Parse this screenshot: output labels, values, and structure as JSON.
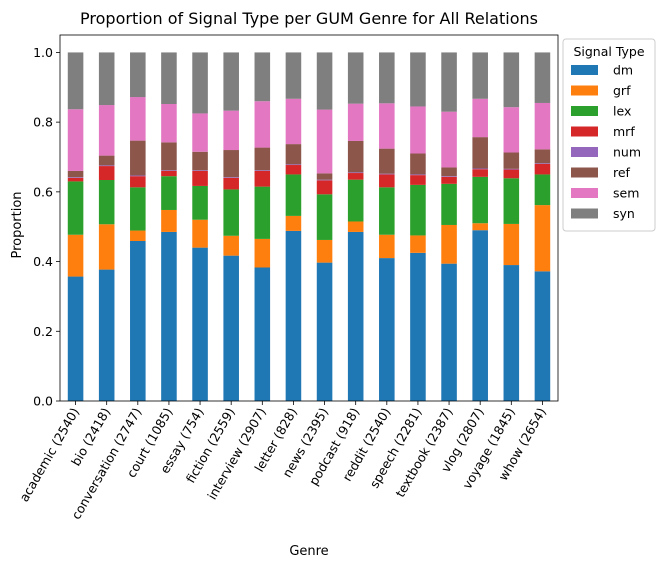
{
  "chart_data": {
    "type": "bar",
    "stacked": true,
    "title": "Proportion of Signal Type per GUM Genre for All Relations",
    "xlabel": "Genre",
    "ylabel": "Proportion",
    "ylim": [
      0,
      1.05
    ],
    "yticks": [
      "0.0",
      "0.2",
      "0.4",
      "0.6",
      "0.8",
      "1.0"
    ],
    "grid": false,
    "legend": {
      "title": "Signal Type",
      "placement": "outside-right-top"
    },
    "categories": [
      "academic (2540)",
      "bio (2418)",
      "conversation (2747)",
      "court (1085)",
      "essay (754)",
      "fiction (2559)",
      "interview (2907)",
      "letter (828)",
      "news (2395)",
      "podcast (918)",
      "reddit (2540)",
      "speech (2281)",
      "textbook (2387)",
      "vlog (2807)",
      "voyage (1845)",
      "whow (2654)"
    ],
    "series": [
      {
        "name": "dm",
        "color": "#1f77b4",
        "values": [
          0.357,
          0.377,
          0.459,
          0.485,
          0.44,
          0.417,
          0.383,
          0.488,
          0.397,
          0.485,
          0.41,
          0.425,
          0.394,
          0.49,
          0.39,
          0.372
        ]
      },
      {
        "name": "grf",
        "color": "#ff7f0e",
        "values": [
          0.12,
          0.13,
          0.03,
          0.063,
          0.08,
          0.057,
          0.082,
          0.043,
          0.065,
          0.03,
          0.067,
          0.05,
          0.111,
          0.02,
          0.118,
          0.19
        ]
      },
      {
        "name": "lex",
        "color": "#2ca02c",
        "values": [
          0.153,
          0.127,
          0.124,
          0.097,
          0.097,
          0.133,
          0.15,
          0.119,
          0.131,
          0.12,
          0.136,
          0.145,
          0.118,
          0.133,
          0.131,
          0.088
        ]
      },
      {
        "name": "mrf",
        "color": "#d62728",
        "values": [
          0.01,
          0.04,
          0.032,
          0.015,
          0.043,
          0.033,
          0.045,
          0.027,
          0.04,
          0.019,
          0.037,
          0.028,
          0.02,
          0.022,
          0.025,
          0.03
        ]
      },
      {
        "name": "num",
        "color": "#9467bd",
        "values": [
          0.002,
          0.002,
          0.002,
          0.002,
          0.002,
          0.002,
          0.002,
          0.002,
          0.002,
          0.002,
          0.002,
          0.002,
          0.002,
          0.002,
          0.002,
          0.002
        ]
      },
      {
        "name": "ref",
        "color": "#8c564b",
        "values": [
          0.018,
          0.028,
          0.1,
          0.08,
          0.053,
          0.078,
          0.065,
          0.058,
          0.018,
          0.09,
          0.072,
          0.06,
          0.025,
          0.09,
          0.047,
          0.04
        ]
      },
      {
        "name": "sem",
        "color": "#e377c2",
        "values": [
          0.177,
          0.145,
          0.125,
          0.11,
          0.11,
          0.113,
          0.133,
          0.13,
          0.183,
          0.107,
          0.13,
          0.135,
          0.16,
          0.11,
          0.13,
          0.133
        ]
      },
      {
        "name": "syn",
        "color": "#7f7f7f",
        "values": [
          0.163,
          0.151,
          0.128,
          0.148,
          0.175,
          0.167,
          0.14,
          0.133,
          0.164,
          0.147,
          0.146,
          0.155,
          0.17,
          0.133,
          0.157,
          0.145
        ]
      }
    ]
  }
}
